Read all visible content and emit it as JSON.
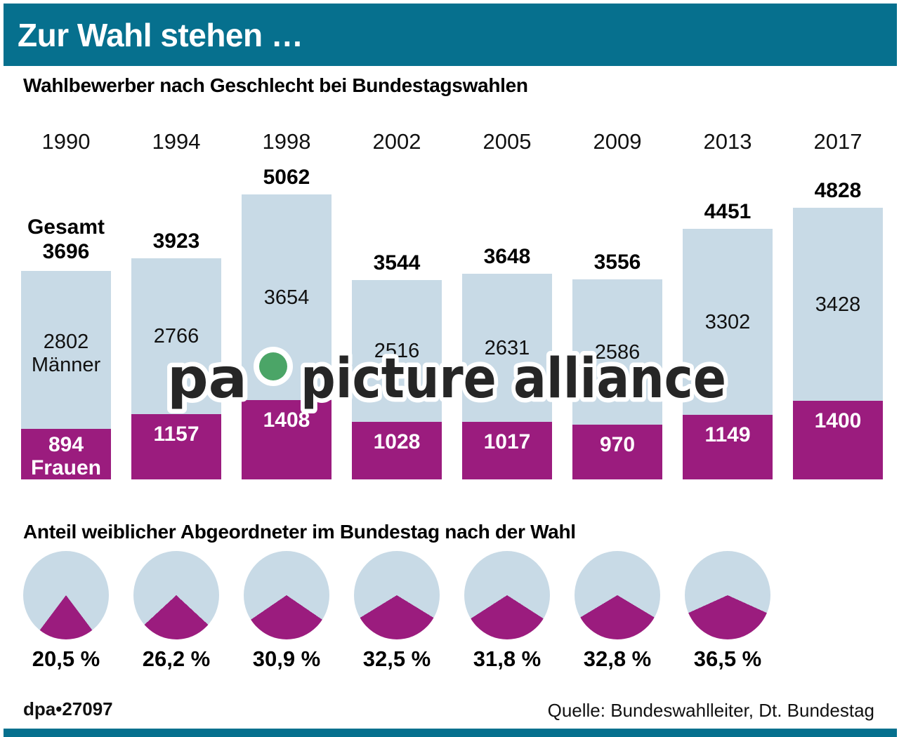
{
  "header": {
    "title": "Zur Wahl stehen …",
    "bg_color": "#06708e",
    "text_color": "#ffffff"
  },
  "bar_section": {
    "title": "Wahlbewerber nach Geschlecht bei Bundestagswahlen"
  },
  "pie_section": {
    "title": "Anteil weiblicher Abgeordneter im Bundestag nach der Wahl"
  },
  "chart_data": [
    {
      "type": "bar",
      "stacked": true,
      "title": "Wahlbewerber nach Geschlecht bei Bundestagswahlen",
      "categories": [
        "1990",
        "1994",
        "1998",
        "2002",
        "2005",
        "2009",
        "2013",
        "2017"
      ],
      "series": [
        {
          "name": "Frauen",
          "color": "#9b1c7e",
          "values": [
            894,
            1157,
            1408,
            1028,
            1017,
            970,
            1149,
            1400
          ]
        },
        {
          "name": "Männer",
          "color": "#c8dae6",
          "values": [
            2802,
            2766,
            3654,
            2516,
            2631,
            2586,
            3302,
            3428
          ]
        }
      ],
      "totals": [
        3696,
        3923,
        5062,
        3544,
        3648,
        3556,
        4451,
        4828
      ],
      "total_prefix_first": "Gesamt",
      "men_label_first": "Männer",
      "women_label_first": "Frauen",
      "ylim": [
        0,
        5062
      ],
      "grid": false,
      "legend_position": "inline-first-bar",
      "value_labels": true
    },
    {
      "type": "pie",
      "title": "Anteil weiblicher Abgeordneter im Bundestag nach der Wahl",
      "labels": [
        "20,5 %",
        "26,2 %",
        "30,9 %",
        "32,5 %",
        "31,8 %",
        "32,8 %",
        "36,5 %"
      ],
      "values_pct": [
        20.5,
        26.2,
        30.9,
        32.5,
        31.8,
        32.8,
        36.5
      ],
      "share_color": "#9b1c7e",
      "rest_color": "#c8dae6",
      "wedge_direction": "bottom-center"
    }
  ],
  "watermark": {
    "pa": "pa",
    "rest": "picture alliance",
    "text_color": "#262626",
    "halo_color": "#ffffff",
    "dot_color": "#4ba567"
  },
  "footer": {
    "left": "dpa•27097",
    "right": "Quelle: Bundeswahlleiter, Dt. Bundestag"
  },
  "colors": {
    "accent_teal": "#06708e",
    "bar_men": "#c8dae6",
    "bar_women": "#9b1c7e"
  }
}
